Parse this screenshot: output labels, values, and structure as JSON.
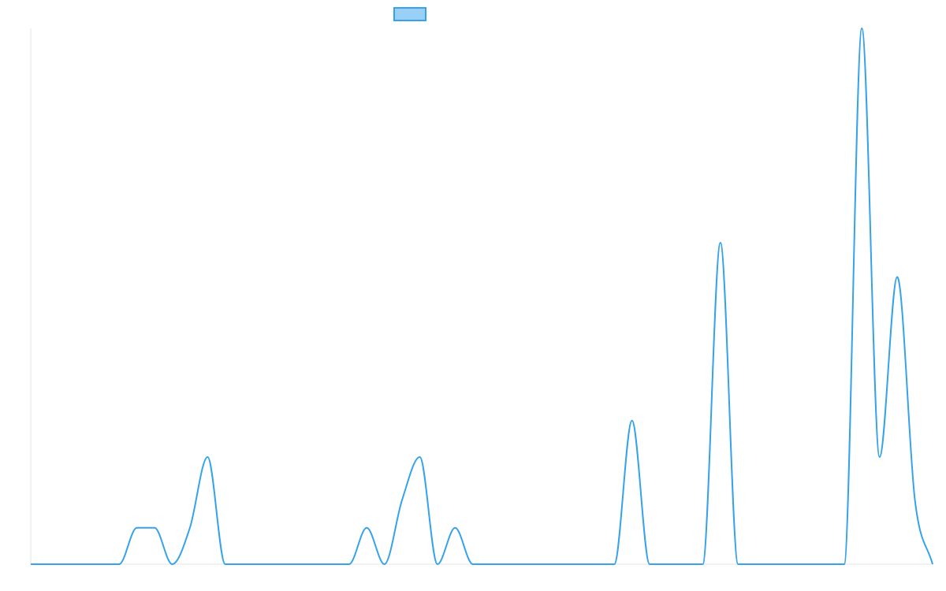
{
  "chart_data": {
    "type": "line",
    "x": [
      0,
      1,
      2,
      3,
      4,
      5,
      6,
      7,
      8,
      9,
      10,
      11,
      12,
      13,
      14,
      15,
      16,
      17,
      18,
      19,
      20,
      21,
      22,
      23,
      24,
      25,
      26,
      27,
      28,
      29,
      30,
      31,
      32,
      33,
      34,
      35,
      36,
      37,
      38,
      39,
      40,
      41,
      42,
      43,
      44,
      45,
      46,
      47,
      48,
      49,
      50,
      51
    ],
    "series": [
      {
        "name": "",
        "color": "#36a2eb",
        "fill_color": "#9ad0f5",
        "values": [
          0,
          0,
          0,
          0,
          0,
          0,
          1.7,
          1.7,
          0,
          1.7,
          5,
          0,
          0,
          0,
          0,
          0,
          0,
          0,
          0,
          1.7,
          0,
          3.0,
          5,
          0,
          1.7,
          0,
          0,
          0,
          0,
          0,
          0,
          0,
          0,
          0,
          6.7,
          0,
          0,
          0,
          0,
          15,
          0,
          0,
          0,
          0,
          0,
          0,
          0,
          25,
          5,
          13.4,
          3.0,
          0
        ]
      }
    ],
    "ylim": [
      0,
      25
    ],
    "legend": {
      "placement": "top-center",
      "show_label": false
    },
    "grid": false
  }
}
